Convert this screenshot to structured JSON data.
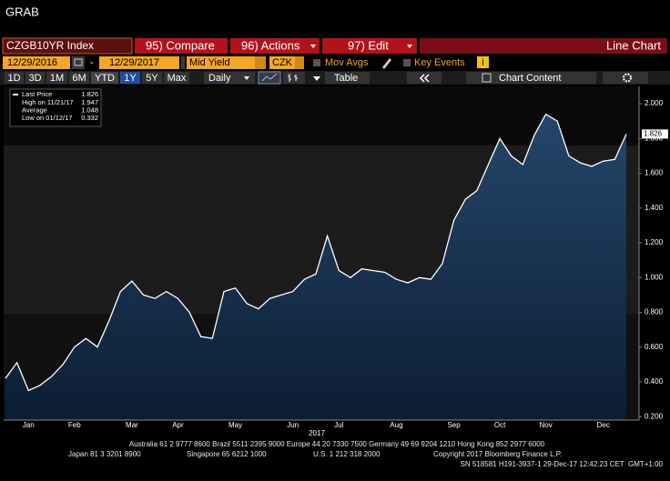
{
  "header": {
    "title": "GRAB"
  },
  "toolbar": {
    "security": "CZGB10YR Index",
    "buttons": [
      "95) Compare",
      "96) Actions",
      "97) Edit"
    ],
    "view": "Line Chart"
  },
  "controls": {
    "start_date": "12/29/2016",
    "date_separator": "-",
    "end_date": "12/29/2017",
    "field": "Mid Yield",
    "currency": "CZK",
    "mov_avgs": "Mov Avgs",
    "key_events": "Key Events",
    "info": "i"
  },
  "periods": [
    "1D",
    "3D",
    "1M",
    "6M",
    "YTD",
    "1Y",
    "5Y",
    "Max"
  ],
  "frequency": "Daily",
  "table": "Table",
  "chart_content": "Chart Content",
  "chart_data": {
    "type": "line",
    "x_label": "2017",
    "categories": [
      null,
      null,
      "Jan",
      null,
      null,
      null,
      "Feb",
      null,
      null,
      null,
      null,
      "Mar",
      null,
      null,
      null,
      "Apr",
      null,
      null,
      null,
      null,
      "May",
      null,
      null,
      null,
      null,
      "Jun",
      null,
      null,
      null,
      "Jul",
      null,
      null,
      null,
      null,
      "Aug",
      null,
      null,
      null,
      null,
      "Sep",
      null,
      null,
      null,
      "Oct",
      null,
      null,
      null,
      "Nov",
      null,
      null,
      null,
      null,
      "Dec",
      null,
      null
    ],
    "series": [
      {
        "name": "Last Price",
        "color": "#ffffff",
        "values": [
          0.42,
          0.51,
          0.35,
          0.38,
          0.43,
          0.5,
          0.6,
          0.65,
          0.6,
          0.75,
          0.92,
          0.98,
          0.9,
          0.88,
          0.92,
          0.88,
          0.8,
          0.66,
          0.65,
          0.92,
          0.94,
          0.85,
          0.82,
          0.88,
          0.9,
          0.92,
          0.99,
          1.02,
          1.24,
          1.04,
          1.0,
          1.05,
          1.04,
          1.03,
          0.99,
          0.97,
          1.0,
          0.99,
          1.08,
          1.33,
          1.45,
          1.5,
          1.65,
          1.8,
          1.7,
          1.65,
          1.82,
          1.94,
          1.9,
          1.7,
          1.66,
          1.64,
          1.67,
          1.68,
          1.826
        ]
      }
    ],
    "stats": [
      {
        "label": "High on 11/21/17",
        "value": 1.947
      },
      {
        "label": "Average",
        "value": 1.048
      },
      {
        "label": "Low on 01/12/17",
        "value": 0.332
      }
    ],
    "ylim": [
      0.18,
      2.1
    ],
    "yticks": [
      {
        "value": 0.2,
        "label": "0.200"
      },
      {
        "value": 0.4,
        "label": "0.400"
      },
      {
        "value": 0.6,
        "label": "0.600"
      },
      {
        "value": 0.8,
        "label": "0.800"
      },
      {
        "value": 1.0,
        "label": "1.000"
      },
      {
        "value": 1.2,
        "label": "1.200"
      },
      {
        "value": 1.4,
        "label": "1.400"
      },
      {
        "value": 1.6,
        "label": "1.600"
      },
      {
        "value": 1.8,
        "label": "1.800"
      },
      {
        "value": 2.0,
        "label": "2.000"
      }
    ]
  },
  "footer": {
    "line1": "Australia 61 2 9777 8600 Brazil 5511 2395 9000 Europe 44 20 7330 7500 Germany 49 69 9204 1210 Hong Kong 852 2977 6000",
    "line2": [
      "Japan 81 3 3201 8900",
      "Singapore 65 6212 1000",
      "U.S. 1 212 318 2000",
      "Copyright 2017 Bloomberg Finance L.P."
    ],
    "line3": "SN 518581 H191-3937-1 29-Dec-17 12:42:23 CET  GMT+1:00"
  }
}
